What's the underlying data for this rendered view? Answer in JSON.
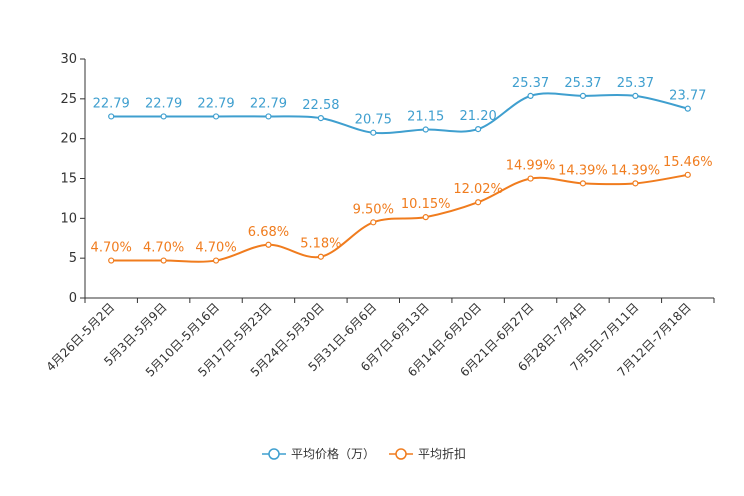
{
  "chart_data": {
    "type": "line",
    "title": "",
    "categories": [
      "4月26日-5月2日",
      "5月3日-5月9日",
      "5月10日-5月16日",
      "5月17日-5月23日",
      "5月24日-5月30日",
      "5月31日-6月6日",
      "6月7日-6月13日",
      "6月14日-6月20日",
      "6月21日-6月27日",
      "6月28日-7月4日",
      "7月5日-7月11日",
      "7月12日-7月18日"
    ],
    "ylim": [
      0,
      30
    ],
    "yticks": [
      0,
      5,
      10,
      15,
      20,
      25,
      30
    ],
    "series": [
      {
        "name": "平均价格（万）",
        "color": "#3f9fcf",
        "values": [
          22.79,
          22.79,
          22.79,
          22.79,
          22.58,
          20.75,
          21.15,
          21.2,
          25.37,
          25.37,
          25.37,
          23.77
        ],
        "labels": [
          "22.79",
          "22.79",
          "22.79",
          "22.79",
          "22.58",
          "20.75",
          "21.15",
          "21.20",
          "25.37",
          "25.37",
          "25.37",
          "23.77"
        ]
      },
      {
        "name": "平均折扣",
        "color": "#f07c1e",
        "values": [
          4.7,
          4.7,
          4.7,
          6.68,
          5.18,
          9.5,
          10.15,
          12.02,
          14.99,
          14.39,
          14.39,
          15.46
        ],
        "labels": [
          "4.70%",
          "4.70%",
          "4.70%",
          "6.68%",
          "5.18%",
          "9.50%",
          "10.15%",
          "12.02%",
          "14.99%",
          "14.39%",
          "14.39%",
          "15.46%"
        ]
      }
    ],
    "legend_position": "bottom-center"
  }
}
